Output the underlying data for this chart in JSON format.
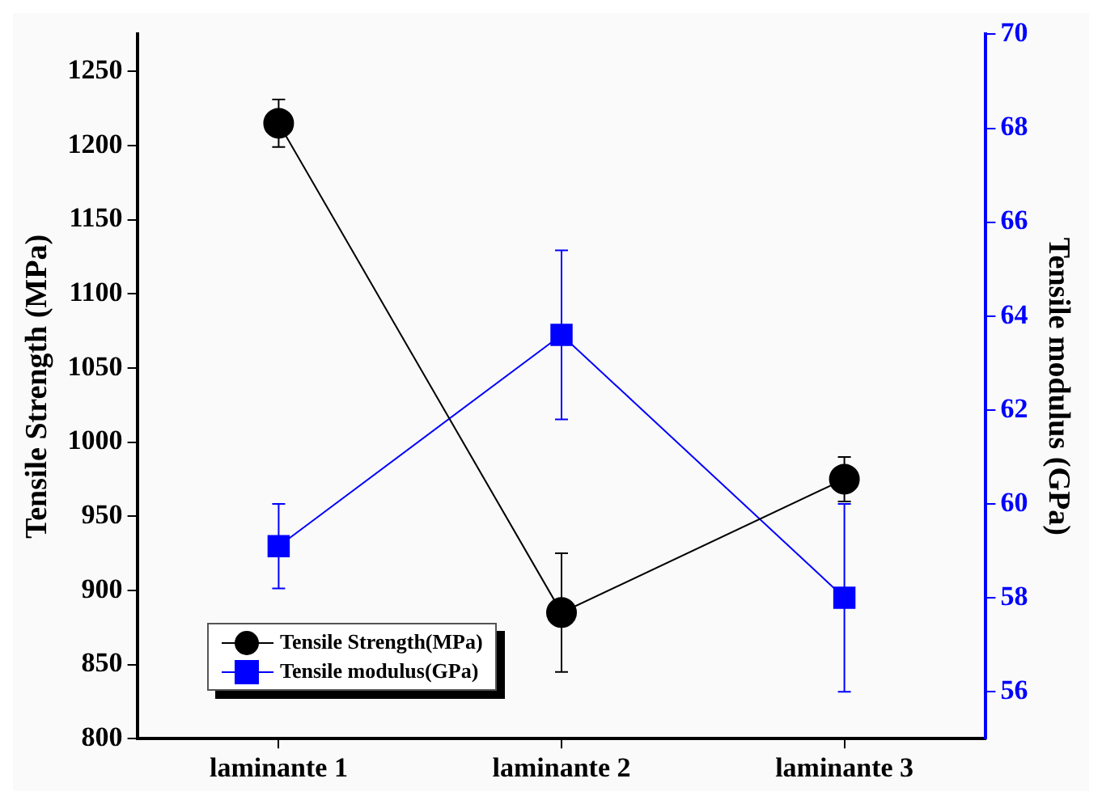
{
  "chart_data": {
    "type": "line",
    "ylabel": "Tensile Strength (MPa)",
    "y2label": "Tensile modulus (GPa)",
    "categories": [
      "laminante 1",
      "laminante 2",
      "laminante 3"
    ],
    "series": [
      {
        "name": "Tensile Strength(MPa)",
        "color": "#000000",
        "values": [
          1215,
          885,
          975
        ],
        "errors": [
          16,
          40,
          15
        ],
        "marker": "circle"
      },
      {
        "name": "Tensile modulus(GPa)",
        "color": "#0000ff",
        "values": [
          59.1,
          63.6,
          58.0
        ],
        "errors": [
          0.9,
          1.8,
          2
        ],
        "marker": "square",
        "axis": "y2"
      }
    ],
    "ylim": [
      800,
      1275
    ],
    "yticks": [
      800,
      850,
      900,
      950,
      1000,
      1050,
      1100,
      1150,
      1200,
      1250
    ],
    "y2lim": [
      55,
      70
    ],
    "y2ticks": [
      56,
      58,
      60,
      62,
      64,
      66,
      68,
      70
    ],
    "grid": false,
    "legend": "bottom left"
  }
}
